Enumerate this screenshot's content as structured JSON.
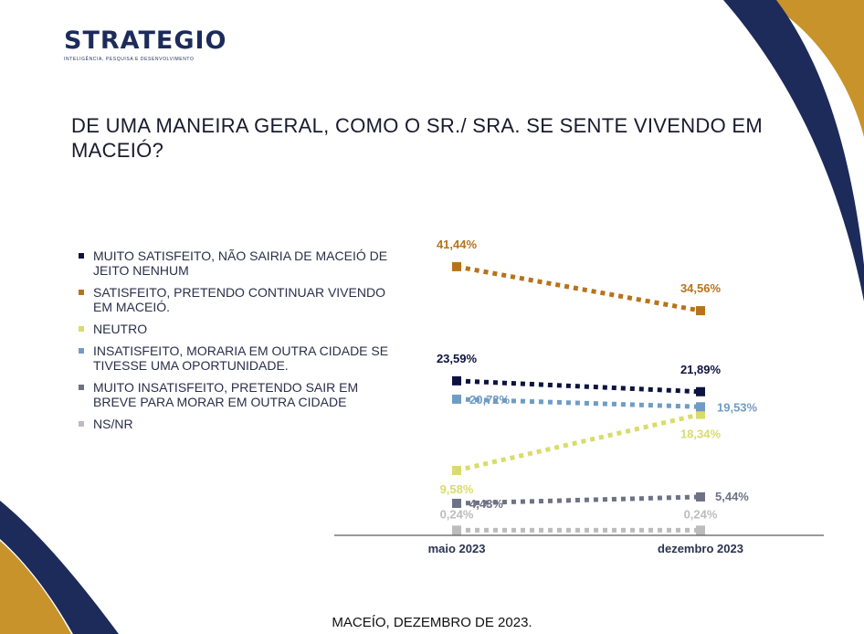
{
  "header": {
    "logo": "STRATEGIO",
    "tagline": "INTELIGÊNCIA, PESQUISA E DESENVOLVIMENTO"
  },
  "title": "DE UMA  MANEIRA GERAL, COMO O SR./ SRA. SE SENTE VIVENDO EM MACEIÓ?",
  "footer": "MACEÍO, DEZEMBRO DE 2023.",
  "colors": {
    "navy": "#1c2b5a",
    "gold": "#c9932b"
  },
  "chart_data": {
    "type": "line",
    "x": [
      "maio 2023",
      "dezembro 2023"
    ],
    "ylim": [
      0,
      45
    ],
    "grid": false,
    "legend_position": "left",
    "series": [
      {
        "name": "MUITO SATISFEITO, NÃO SAIRIA DE MACEIÓ DE JEITO NENHUM",
        "color": "#0d1340",
        "values": [
          23.59,
          21.89
        ],
        "labels": [
          "23,59%",
          "21,89%"
        ]
      },
      {
        "name": "SATISFEITO, PRETENDO CONTINUAR VIVENDO EM MACEIÓ.",
        "color": "#b8731a",
        "values": [
          41.44,
          34.56
        ],
        "labels": [
          "41,44%",
          "34,56%"
        ]
      },
      {
        "name": "NEUTRO",
        "color": "#d9dc6a",
        "values": [
          9.58,
          18.34
        ],
        "labels": [
          "9,58%",
          "18,34%"
        ]
      },
      {
        "name": "INSATISFEITO, MORARIA EM OUTRA CIDADE SE TIVESSE UMA OPORTUNIDADE.",
        "color": "#6f9cc4",
        "values": [
          20.72,
          19.53
        ],
        "labels": [
          "20,72%",
          "19,53%"
        ]
      },
      {
        "name": "MUITO INSATISFEITO, PRETENDO SAIR EM BREVE PARA MORAR EM OUTRA CIDADE",
        "color": "#6e7285",
        "values": [
          4.43,
          5.44
        ],
        "labels": [
          "4,43%",
          "5,44%"
        ]
      },
      {
        "name": "NS/NR",
        "color": "#bcbcbc",
        "values": [
          0.24,
          0.24
        ],
        "labels": [
          "0,24%",
          "0,24%"
        ]
      }
    ]
  }
}
